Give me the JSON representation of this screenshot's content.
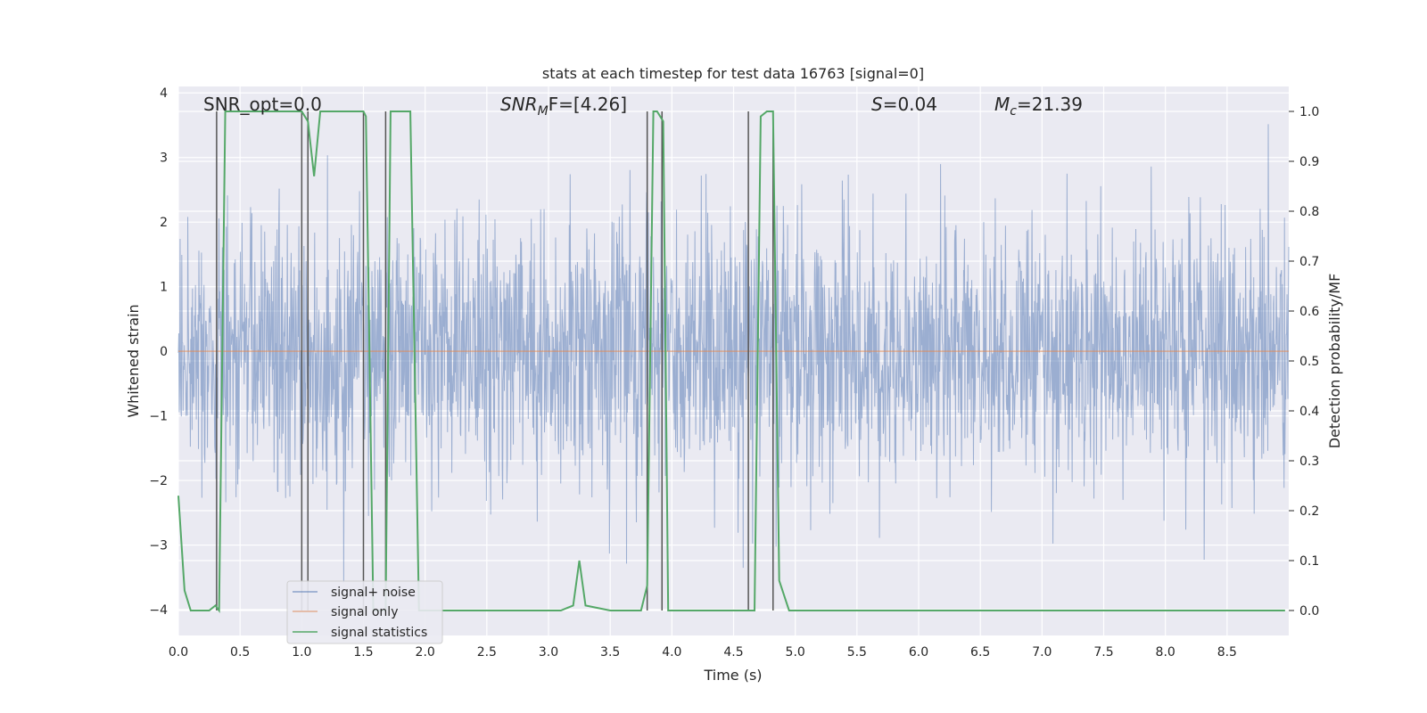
{
  "chart_data": {
    "type": "line",
    "title": "stats at each timestep for test data 16763 [signal=0]",
    "xlabel": "Time (s)",
    "ylabel_left": "Whitened strain",
    "ylabel_right": "Detection probability/MF",
    "xlim": [
      0,
      9
    ],
    "ylim_left": [
      -4.4,
      4.1
    ],
    "ylim_right": [
      -0.05,
      1.05
    ],
    "xticks": [
      "0.0",
      "0.5",
      "1.0",
      "1.5",
      "2.0",
      "2.5",
      "3.0",
      "3.5",
      "4.0",
      "4.5",
      "5.0",
      "5.5",
      "6.0",
      "6.5",
      "7.0",
      "7.5",
      "8.0",
      "8.5"
    ],
    "yticks_left": [
      "−4",
      "−3",
      "−2",
      "−1",
      "0",
      "1",
      "2",
      "3",
      "4"
    ],
    "yticks_right": [
      "0.0",
      "0.1",
      "0.2",
      "0.3",
      "0.4",
      "0.5",
      "0.6",
      "0.7",
      "0.8",
      "0.9",
      "1.0"
    ],
    "grid": true,
    "legend_position": "lower-left",
    "annotations": {
      "snr_opt": "SNR_opt=0.0",
      "snr_mf_main": "SNR",
      "snr_mf_sub": "M",
      "snr_mf_tail": "F=[4.26]",
      "s_main": "S",
      "s_tail": "=0.04",
      "mc_main": "M",
      "mc_sub": "c",
      "mc_tail": "=21.39"
    },
    "series": [
      {
        "name": "signal+ noise",
        "color": "#4c72b0",
        "description_values": "noise envelope approx ±2 to ±3.7"
      },
      {
        "name": "signal only",
        "color": "#dd8452",
        "values_constant": 0
      },
      {
        "name": "signal statistics",
        "color": "#55a868",
        "x": [
          0.0,
          0.05,
          0.1,
          0.2,
          0.25,
          0.3,
          0.33,
          0.38,
          0.5,
          0.6,
          0.7,
          0.8,
          0.9,
          1.0,
          1.05,
          1.1,
          1.15,
          1.2,
          1.3,
          1.4,
          1.5,
          1.52,
          1.58,
          1.63,
          1.68,
          1.72,
          1.78,
          1.88,
          1.95,
          2.0,
          2.1,
          2.5,
          3.0,
          3.1,
          3.2,
          3.25,
          3.3,
          3.5,
          3.75,
          3.8,
          3.85,
          3.88,
          3.93,
          3.97,
          4.0,
          4.5,
          4.62,
          4.67,
          4.72,
          4.77,
          4.82,
          4.87,
          4.95,
          5.0,
          5.5,
          6.0,
          6.5,
          6.7,
          6.8,
          7.0,
          7.5,
          8.0,
          8.5,
          8.85,
          8.92,
          8.97
        ],
        "values": [
          0.23,
          0.04,
          0.0,
          0.0,
          0.0,
          0.01,
          0.0,
          1.0,
          1.0,
          1.0,
          1.0,
          1.0,
          1.0,
          1.0,
          0.98,
          0.87,
          1.0,
          1.0,
          1.0,
          1.0,
          1.0,
          0.99,
          0.0,
          0.0,
          0.0,
          1.0,
          1.0,
          1.0,
          0.0,
          0.0,
          0.0,
          0.0,
          0.0,
          0.0,
          0.01,
          0.1,
          0.01,
          0.0,
          0.0,
          0.05,
          1.0,
          1.0,
          0.98,
          0.0,
          0.0,
          0.0,
          0.0,
          0.0,
          0.99,
          1.0,
          1.0,
          0.06,
          0.0,
          0.0,
          0.0,
          0.0,
          0.0,
          0.0,
          0.0,
          0.0,
          0.0,
          0.0,
          0.0,
          0.0,
          0.0,
          0.0
        ]
      },
      {
        "name": "",
        "type": "vlines",
        "color": "#555555",
        "x": [
          0.31,
          1.0,
          1.05,
          1.5,
          1.68,
          3.8,
          3.92,
          4.62,
          4.82
        ]
      }
    ]
  }
}
